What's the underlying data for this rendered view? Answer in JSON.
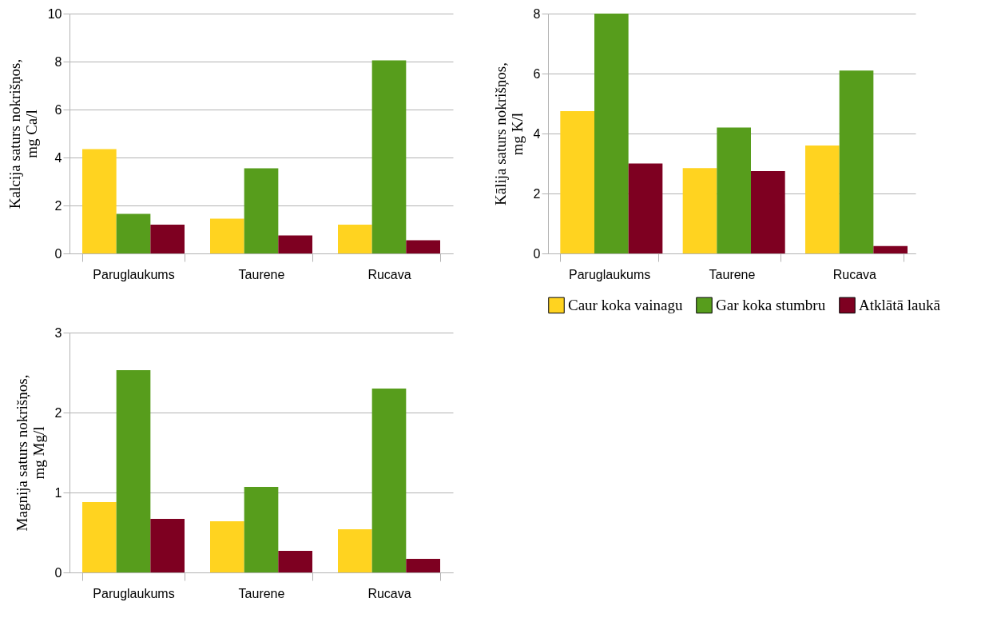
{
  "chart_data": [
    {
      "type": "bar",
      "ylabel": "Kalcija saturs nokrišņos, mg Ca/l",
      "categories": [
        "Paruglaukums",
        "Taurene",
        "Rucava"
      ],
      "ylim": [
        0,
        10
      ],
      "yticks": [
        0,
        2,
        4,
        6,
        8,
        10
      ],
      "grid": "y",
      "legend": false,
      "series": [
        {
          "color": "#ffd320",
          "values": [
            4.35,
            1.45,
            1.2
          ]
        },
        {
          "color": "#579d1c",
          "values": [
            1.65,
            3.55,
            8.05
          ]
        },
        {
          "color": "#7e0021",
          "values": [
            1.2,
            0.75,
            0.55
          ]
        }
      ]
    },
    {
      "type": "bar",
      "ylabel": "Kālija saturs nokrišņos, mg K/l",
      "categories": [
        "Paruglaukums",
        "Taurene",
        "Rucava"
      ],
      "ylim": [
        0,
        8
      ],
      "yticks": [
        0,
        2,
        4,
        6,
        8
      ],
      "grid": "y",
      "legend": "bottom",
      "series": [
        {
          "name": "Caur koka vainagu",
          "color": "#ffd320",
          "values": [
            4.75,
            2.85,
            3.6
          ]
        },
        {
          "name": "Gar koka stumbru",
          "color": "#579d1c",
          "values": [
            8.0,
            4.2,
            6.1
          ]
        },
        {
          "name": "Atklātā laukā",
          "color": "#7e0021",
          "values": [
            3.0,
            2.75,
            0.25
          ]
        }
      ]
    },
    {
      "type": "bar",
      "ylabel": "Magnija saturs nokrišņos, mg Mg/l",
      "categories": [
        "Paruglaukums",
        "Taurene",
        "Rucava"
      ],
      "ylim": [
        0,
        3
      ],
      "yticks": [
        0,
        1,
        2,
        3
      ],
      "grid": "y",
      "legend": false,
      "series": [
        {
          "color": "#ffd320",
          "values": [
            0.88,
            0.64,
            0.54
          ]
        },
        {
          "color": "#579d1c",
          "values": [
            2.53,
            1.07,
            2.3
          ]
        },
        {
          "color": "#7e0021",
          "values": [
            0.67,
            0.27,
            0.17
          ]
        }
      ]
    }
  ]
}
